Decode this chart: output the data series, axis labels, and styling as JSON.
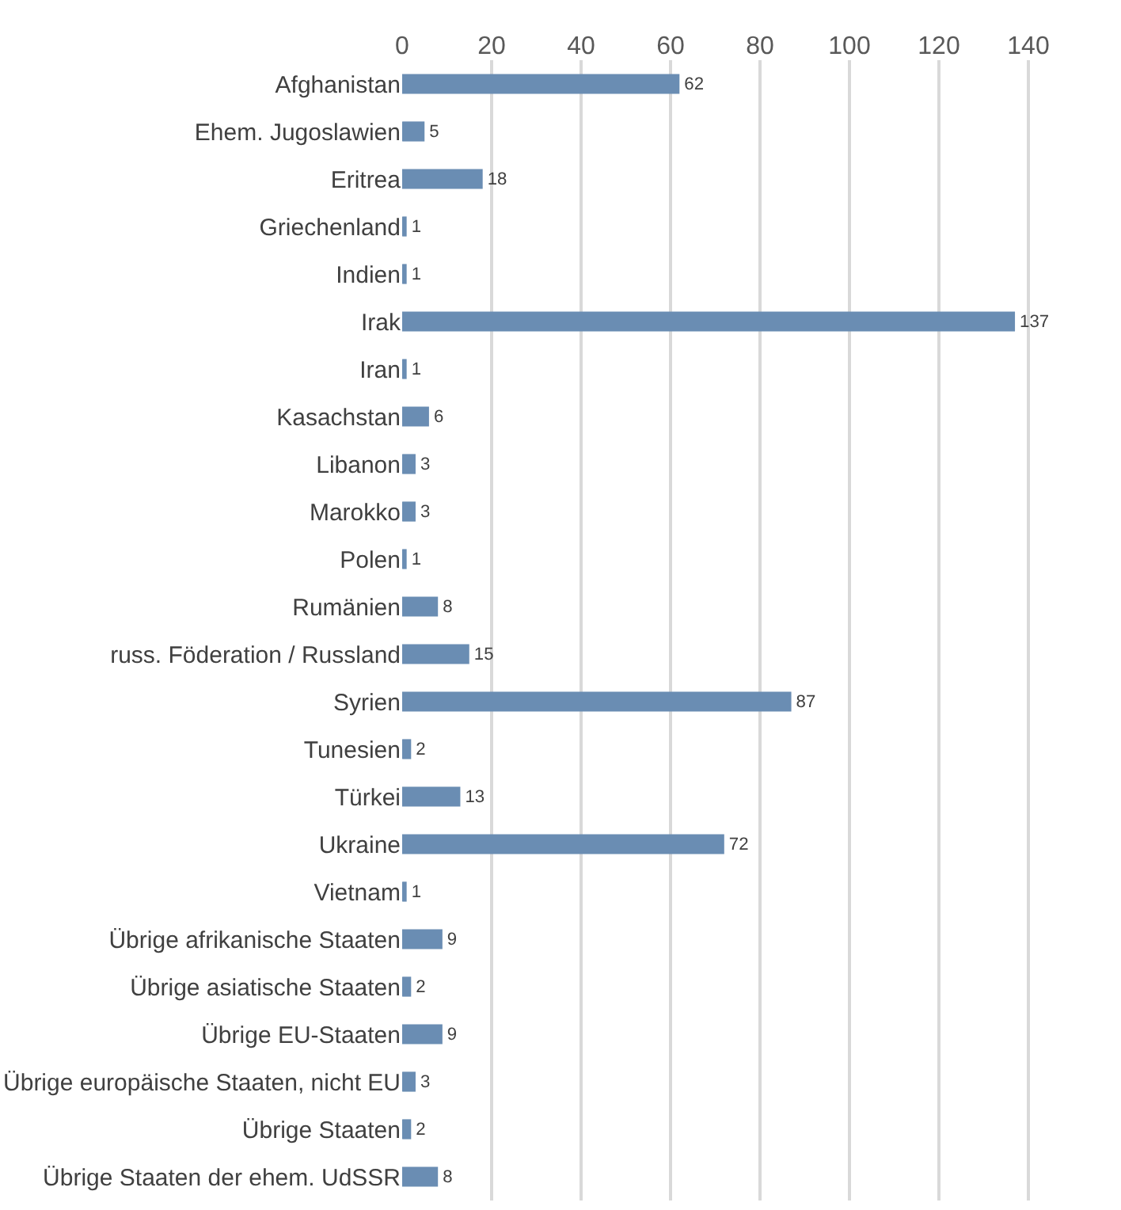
{
  "chart_data": {
    "type": "bar",
    "orientation": "horizontal",
    "categories": [
      "Afghanistan",
      "Ehem. Jugoslawien",
      "Eritrea",
      "Griechenland",
      "Indien",
      "Irak",
      "Iran",
      "Kasachstan",
      "Libanon",
      "Marokko",
      "Polen",
      "Rumänien",
      "russ. Föderation / Russland",
      "Syrien",
      "Tunesien",
      "Türkei",
      "Ukraine",
      "Vietnam",
      "Übrige afrikanische Staaten",
      "Übrige asiatische Staaten",
      "Übrige EU-Staaten",
      "Übrige europäische Staaten, nicht EU",
      "Übrige Staaten",
      "Übrige Staaten der ehem. UdSSR"
    ],
    "values": [
      62,
      5,
      18,
      1,
      1,
      137,
      1,
      6,
      3,
      3,
      1,
      8,
      15,
      87,
      2,
      13,
      72,
      1,
      9,
      2,
      9,
      3,
      2,
      8
    ],
    "color": "#6a8db3",
    "xlim": [
      0,
      160
    ],
    "xticks": [
      0,
      20,
      40,
      60,
      80,
      100,
      120,
      140
    ],
    "grid": "x",
    "data_labels": true,
    "legend": false
  }
}
